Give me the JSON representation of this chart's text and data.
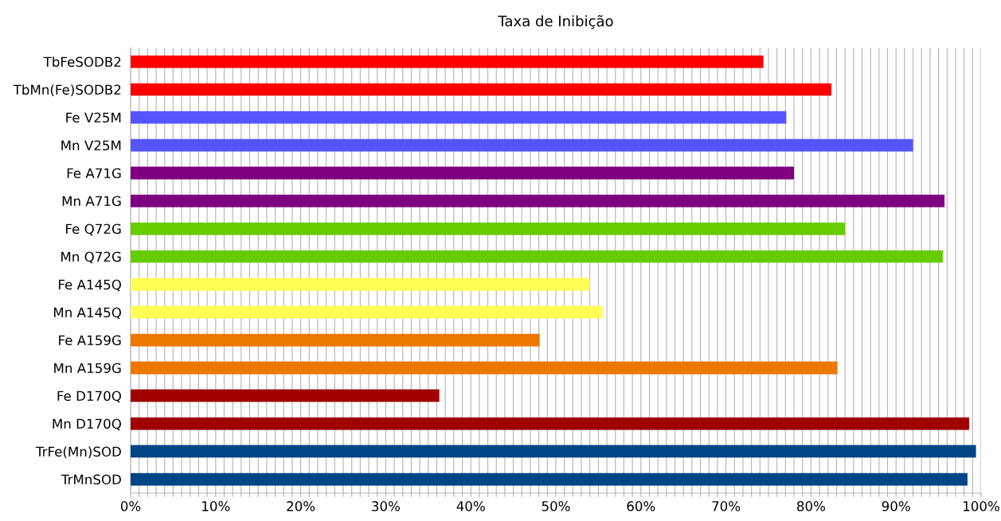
{
  "chart_data": {
    "type": "bar",
    "orientation": "horizontal",
    "title": "Taxa de Inibição",
    "categories": [
      "TbFeSODB2",
      "TbMn(Fe)SODB2",
      "Fe V25M",
      "Mn V25M",
      "Fe A71G",
      "Mn A71G",
      "Fe Q72G",
      "Mn Q72G",
      "Fe A145Q",
      "Mn A145Q",
      "Fe A159G",
      "Mn A159G",
      "Fe D170Q",
      "Mn D170Q",
      "TrFe(Mn)SOD",
      "TrMnSOD"
    ],
    "values": [
      74.4,
      82.4,
      77.1,
      92.0,
      78.0,
      95.7,
      84.0,
      95.5,
      54.0,
      55.5,
      48.1,
      83.1,
      36.3,
      98.6,
      99.4,
      98.4
    ],
    "colors": [
      "#ff0000",
      "#ff0000",
      "#5555ff",
      "#5555ff",
      "#7e0080",
      "#7e0080",
      "#66cc00",
      "#66cc00",
      "#ffff55",
      "#ffff55",
      "#ee7700",
      "#ee7700",
      "#a00000",
      "#a00000",
      "#004586",
      "#004586"
    ],
    "xlim": [
      0,
      100
    ],
    "xticks": [
      {
        "value": 0,
        "label": "0%"
      },
      {
        "value": 1,
        "label": null
      },
      {
        "value": 2,
        "label": null
      },
      {
        "value": 3,
        "label": null
      },
      {
        "value": 4,
        "label": null
      },
      {
        "value": 5,
        "label": null
      },
      {
        "value": 6,
        "label": null
      },
      {
        "value": 7,
        "label": null
      },
      {
        "value": 8,
        "label": null
      },
      {
        "value": 9,
        "label": null
      },
      {
        "value": 10,
        "label": "10%"
      },
      {
        "value": 11,
        "label": null
      },
      {
        "value": 12,
        "label": null
      },
      {
        "value": 13,
        "label": null
      },
      {
        "value": 14,
        "label": null
      },
      {
        "value": 15,
        "label": null
      },
      {
        "value": 16,
        "label": null
      },
      {
        "value": 17,
        "label": null
      },
      {
        "value": 18,
        "label": null
      },
      {
        "value": 19,
        "label": null
      },
      {
        "value": 20,
        "label": "20%"
      },
      {
        "value": 21,
        "label": null
      },
      {
        "value": 22,
        "label": null
      },
      {
        "value": 23,
        "label": null
      },
      {
        "value": 24,
        "label": null
      },
      {
        "value": 25,
        "label": null
      },
      {
        "value": 26,
        "label": null
      },
      {
        "value": 27,
        "label": null
      },
      {
        "value": 28,
        "label": null
      },
      {
        "value": 29,
        "label": null
      },
      {
        "value": 30,
        "label": "30%"
      },
      {
        "value": 31,
        "label": null
      },
      {
        "value": 32,
        "label": null
      },
      {
        "value": 33,
        "label": null
      },
      {
        "value": 34,
        "label": null
      },
      {
        "value": 35,
        "label": null
      },
      {
        "value": 36,
        "label": null
      },
      {
        "value": 37,
        "label": null
      },
      {
        "value": 38,
        "label": null
      },
      {
        "value": 39,
        "label": null
      },
      {
        "value": 40,
        "label": "40%"
      },
      {
        "value": 41,
        "label": null
      },
      {
        "value": 42,
        "label": null
      },
      {
        "value": 43,
        "label": null
      },
      {
        "value": 44,
        "label": null
      },
      {
        "value": 45,
        "label": null
      },
      {
        "value": 46,
        "label": null
      },
      {
        "value": 47,
        "label": null
      },
      {
        "value": 48,
        "label": null
      },
      {
        "value": 49,
        "label": null
      },
      {
        "value": 50,
        "label": "50%"
      },
      {
        "value": 51,
        "label": null
      },
      {
        "value": 52,
        "label": null
      },
      {
        "value": 53,
        "label": null
      },
      {
        "value": 54,
        "label": null
      },
      {
        "value": 55,
        "label": null
      },
      {
        "value": 56,
        "label": null
      },
      {
        "value": 57,
        "label": null
      },
      {
        "value": 58,
        "label": null
      },
      {
        "value": 59,
        "label": null
      },
      {
        "value": 60,
        "label": "60%"
      },
      {
        "value": 61,
        "label": null
      },
      {
        "value": 62,
        "label": null
      },
      {
        "value": 63,
        "label": null
      },
      {
        "value": 64,
        "label": null
      },
      {
        "value": 65,
        "label": null
      },
      {
        "value": 66,
        "label": null
      },
      {
        "value": 67,
        "label": null
      },
      {
        "value": 68,
        "label": null
      },
      {
        "value": 69,
        "label": null
      },
      {
        "value": 70,
        "label": "70%"
      },
      {
        "value": 71,
        "label": null
      },
      {
        "value": 72,
        "label": null
      },
      {
        "value": 73,
        "label": null
      },
      {
        "value": 74,
        "label": null
      },
      {
        "value": 75,
        "label": null
      },
      {
        "value": 76,
        "label": null
      },
      {
        "value": 77,
        "label": null
      },
      {
        "value": 78,
        "label": null
      },
      {
        "value": 79,
        "label": null
      },
      {
        "value": 80,
        "label": "80%"
      },
      {
        "value": 81,
        "label": null
      },
      {
        "value": 82,
        "label": null
      },
      {
        "value": 83,
        "label": null
      },
      {
        "value": 84,
        "label": null
      },
      {
        "value": 85,
        "label": null
      },
      {
        "value": 86,
        "label": null
      },
      {
        "value": 87,
        "label": null
      },
      {
        "value": 88,
        "label": null
      },
      {
        "value": 89,
        "label": null
      },
      {
        "value": 90,
        "label": "90%"
      },
      {
        "value": 91,
        "label": null
      },
      {
        "value": 92,
        "label": null
      },
      {
        "value": 93,
        "label": null
      },
      {
        "value": 94,
        "label": null
      },
      {
        "value": 95,
        "label": null
      },
      {
        "value": 96,
        "label": null
      },
      {
        "value": 97,
        "label": null
      },
      {
        "value": 98,
        "label": null
      },
      {
        "value": 99,
        "label": null
      },
      {
        "value": 100,
        "label": "100%"
      }
    ],
    "grid": "x",
    "legend": false
  }
}
